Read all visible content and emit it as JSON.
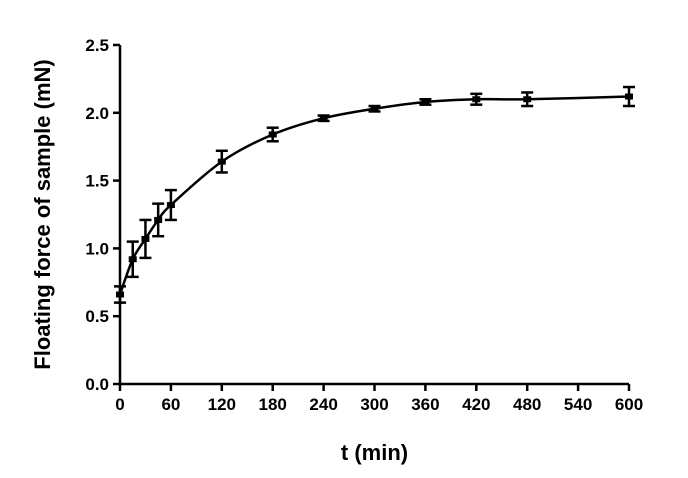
{
  "chart_data": {
    "type": "line",
    "xlabel": "t (min)",
    "ylabel": "Floating force of sample (mN)",
    "xlim": [
      0,
      600
    ],
    "ylim": [
      0.0,
      2.5
    ],
    "xticks": [
      "0",
      "60",
      "120",
      "180",
      "240",
      "300",
      "360",
      "420",
      "480",
      "540",
      "600"
    ],
    "xtick_values": [
      0,
      60,
      120,
      180,
      240,
      300,
      360,
      420,
      480,
      540,
      600
    ],
    "yticks": [
      "0.0",
      "0.5",
      "1.0",
      "1.5",
      "2.0",
      "2.5"
    ],
    "ytick_values": [
      0.0,
      0.5,
      1.0,
      1.5,
      2.0,
      2.5
    ],
    "grid": false,
    "series": [
      {
        "x": [
          0,
          15,
          30,
          45,
          60,
          120,
          180,
          240,
          300,
          360,
          420,
          480,
          600
        ],
        "y": [
          0.66,
          0.92,
          1.07,
          1.21,
          1.32,
          1.64,
          1.84,
          1.96,
          2.03,
          2.08,
          2.1,
          2.1,
          2.12
        ],
        "err": [
          0.06,
          0.13,
          0.14,
          0.12,
          0.11,
          0.08,
          0.05,
          0.02,
          0.02,
          0.02,
          0.04,
          0.05,
          0.07
        ],
        "color": "#000000"
      }
    ]
  }
}
